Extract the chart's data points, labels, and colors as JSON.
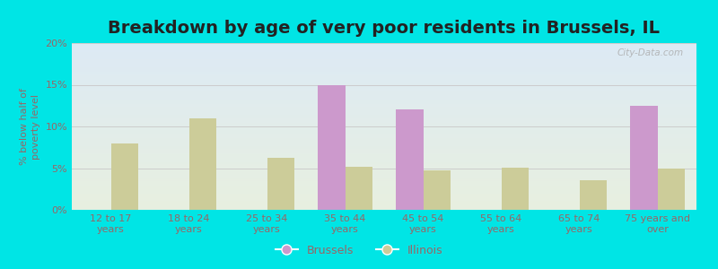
{
  "title": "Breakdown by age of very poor residents in Brussels, IL",
  "ylabel": "% below half of\npoverty level",
  "categories": [
    "12 to 17\nyears",
    "18 to 24\nyears",
    "25 to 34\nyears",
    "35 to 44\nyears",
    "45 to 54\nyears",
    "55 to 64\nyears",
    "65 to 74\nyears",
    "75 years and\nover"
  ],
  "brussels": [
    0,
    0,
    0,
    15.0,
    12.0,
    0,
    0,
    12.5
  ],
  "illinois": [
    8.0,
    11.0,
    6.2,
    5.2,
    4.7,
    5.1,
    3.5,
    5.0
  ],
  "brussels_color": "#cc99cc",
  "illinois_color": "#cccc99",
  "bg_outer": "#00e5e5",
  "bg_chart_bottom": "#e8f0e0",
  "bg_chart_top": "#ddeaf5",
  "ylim": [
    0,
    20
  ],
  "yticks": [
    0,
    5,
    10,
    15,
    20
  ],
  "ytick_labels": [
    "0%",
    "5%",
    "10%",
    "15%",
    "20%"
  ],
  "bar_width": 0.35,
  "title_fontsize": 14,
  "axis_label_fontsize": 8,
  "tick_fontsize": 8,
  "legend_fontsize": 9,
  "watermark": "City-Data.com",
  "title_color": "#222222",
  "axis_color": "#996666",
  "tick_color": "#996666",
  "grid_color": "#cccccc"
}
